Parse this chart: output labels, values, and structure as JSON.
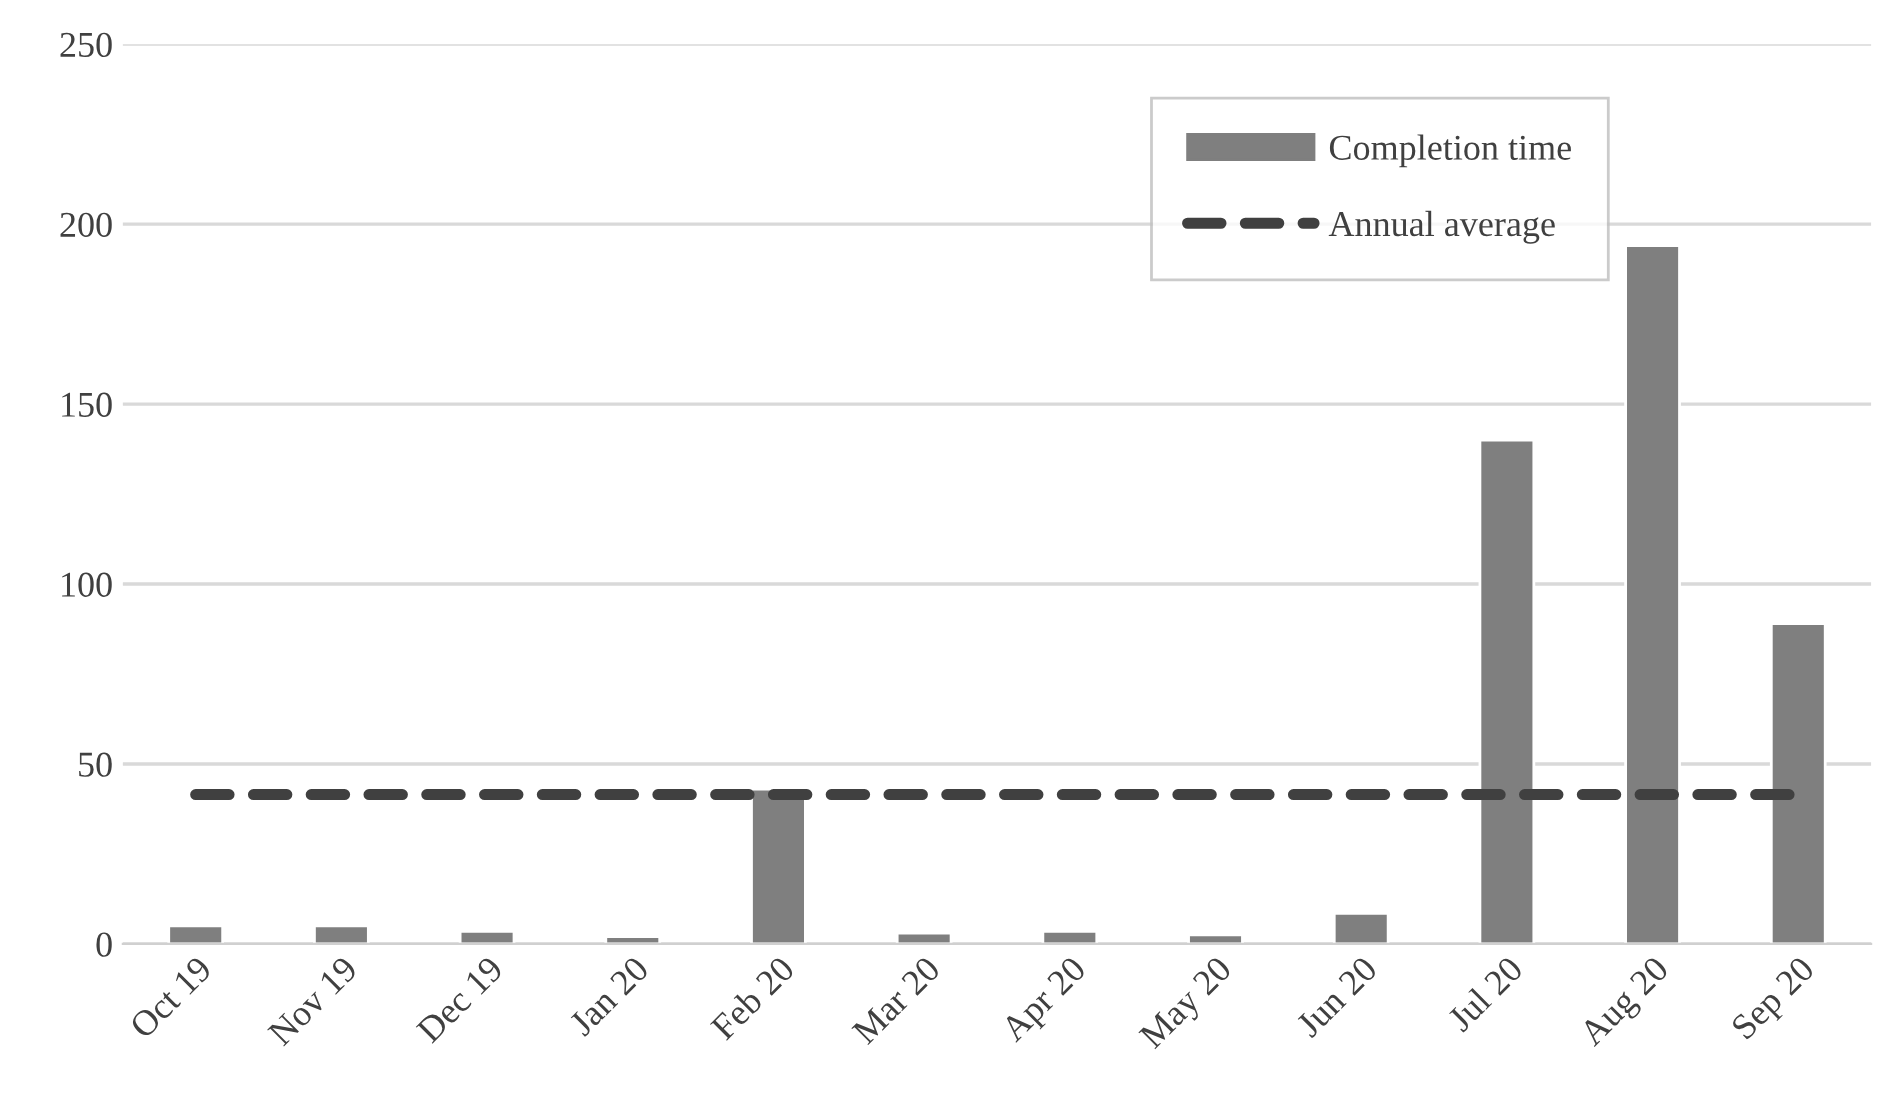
{
  "chart_data": {
    "type": "bar",
    "categories": [
      "Oct 19",
      "Nov 19",
      "Dec 19",
      "Jan 20",
      "Feb 20",
      "Mar 20",
      "Apr 20",
      "May 20",
      "Jun 20",
      "Jul 20",
      "Aug 20",
      "Sep 20"
    ],
    "series": [
      {
        "name": "Completion time",
        "color": "#7f7f7f",
        "values": [
          5,
          5,
          3.5,
          2,
          43,
          3,
          3.5,
          2.5,
          8.5,
          140,
          194,
          89
        ]
      },
      {
        "name": "Annual average",
        "type": "line",
        "color": "#404040",
        "line_style": "dashed",
        "values": [
          41.5,
          41.5,
          41.5,
          41.5,
          41.5,
          41.5,
          41.5,
          41.5,
          41.5,
          41.5,
          41.5,
          41.5
        ]
      }
    ],
    "ylim": [
      0,
      250
    ],
    "yticks": [
      0,
      50,
      100,
      150,
      200,
      250
    ],
    "grid": "y",
    "legend": "top right"
  }
}
